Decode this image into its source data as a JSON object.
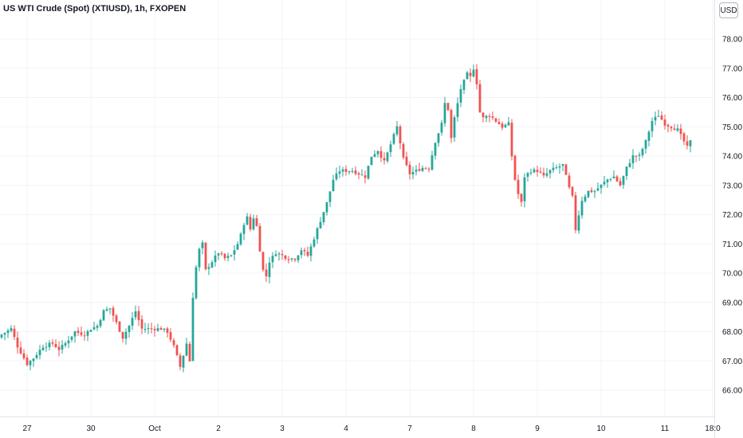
{
  "header": {
    "title": "US WTI Crude (Spot) (XTIUSD), 1h, FXOPEN",
    "currency": "USD"
  },
  "colors": {
    "up": "#26a69a",
    "down": "#ef5350",
    "grid": "#f0f3fa",
    "axis_text": "#131722"
  },
  "chart_data": {
    "type": "candlestick",
    "title": "US WTI Crude (Spot) (XTIUSD), 1h, FXOPEN",
    "xlabel": "",
    "ylabel": "",
    "ylim": [
      65.5,
      78.3
    ],
    "y_ticks": [
      "78.00",
      "77.00",
      "76.00",
      "75.00",
      "74.00",
      "73.00",
      "72.00",
      "71.00",
      "70.00",
      "69.00",
      "68.00",
      "67.00",
      "66.00"
    ],
    "x_ticks": [
      {
        "label": "27",
        "index": 8
      },
      {
        "label": "30",
        "index": 28
      },
      {
        "label": "Oct",
        "index": 48
      },
      {
        "label": "2",
        "index": 68
      },
      {
        "label": "3",
        "index": 88
      },
      {
        "label": "4",
        "index": 108
      },
      {
        "label": "7",
        "index": 128
      },
      {
        "label": "8",
        "index": 148
      },
      {
        "label": "9",
        "index": 168
      },
      {
        "label": "10",
        "index": 188
      },
      {
        "label": "11",
        "index": 208
      },
      {
        "label": "18:0",
        "index": 223
      }
    ],
    "grid": true,
    "legend": "none",
    "keyframes": [
      [
        0,
        67.9
      ],
      [
        3,
        68.1
      ],
      [
        5,
        67.5
      ],
      [
        8,
        66.9
      ],
      [
        10,
        67.1
      ],
      [
        13,
        67.5
      ],
      [
        16,
        67.6
      ],
      [
        18,
        67.4
      ],
      [
        20,
        67.6
      ],
      [
        23,
        68.0
      ],
      [
        26,
        67.9
      ],
      [
        28,
        68.1
      ],
      [
        30,
        68.2
      ],
      [
        32,
        68.7
      ],
      [
        34,
        68.8
      ],
      [
        36,
        68.3
      ],
      [
        38,
        67.8
      ],
      [
        40,
        68.2
      ],
      [
        42,
        68.7
      ],
      [
        44,
        68.1
      ],
      [
        46,
        68.1
      ],
      [
        48,
        68.1
      ],
      [
        50,
        68.1
      ],
      [
        52,
        68.0
      ],
      [
        54,
        67.5
      ],
      [
        56,
        66.8
      ],
      [
        58,
        67.6
      ],
      [
        59,
        67.0
      ],
      [
        60,
        69.2
      ],
      [
        61,
        70.2
      ],
      [
        62,
        70.8
      ],
      [
        63,
        71.0
      ],
      [
        64,
        70.1
      ],
      [
        66,
        70.4
      ],
      [
        68,
        70.7
      ],
      [
        70,
        70.5
      ],
      [
        72,
        70.6
      ],
      [
        74,
        71.0
      ],
      [
        75,
        71.3
      ],
      [
        76,
        71.7
      ],
      [
        77,
        71.9
      ],
      [
        78,
        71.5
      ],
      [
        79,
        71.9
      ],
      [
        80,
        71.6
      ],
      [
        81,
        70.8
      ],
      [
        82,
        70.1
      ],
      [
        83,
        69.9
      ],
      [
        84,
        70.4
      ],
      [
        86,
        70.7
      ],
      [
        88,
        70.6
      ],
      [
        90,
        70.5
      ],
      [
        92,
        70.5
      ],
      [
        94,
        70.8
      ],
      [
        96,
        70.6
      ],
      [
        98,
        71.2
      ],
      [
        100,
        71.8
      ],
      [
        102,
        72.4
      ],
      [
        104,
        73.2
      ],
      [
        106,
        73.5
      ],
      [
        108,
        73.5
      ],
      [
        110,
        73.5
      ],
      [
        112,
        73.4
      ],
      [
        114,
        73.3
      ],
      [
        116,
        74.0
      ],
      [
        118,
        74.2
      ],
      [
        120,
        73.8
      ],
      [
        122,
        74.4
      ],
      [
        124,
        75.0
      ],
      [
        126,
        73.9
      ],
      [
        128,
        73.4
      ],
      [
        130,
        73.5
      ],
      [
        132,
        73.6
      ],
      [
        134,
        73.6
      ],
      [
        136,
        74.5
      ],
      [
        138,
        75.1
      ],
      [
        139,
        75.8
      ],
      [
        140,
        75.6
      ],
      [
        141,
        74.6
      ],
      [
        142,
        75.3
      ],
      [
        144,
        76.3
      ],
      [
        146,
        76.8
      ],
      [
        147,
        76.7
      ],
      [
        148,
        77.0
      ],
      [
        149,
        76.5
      ],
      [
        150,
        75.5
      ],
      [
        151,
        75.3
      ],
      [
        153,
        75.4
      ],
      [
        155,
        75.2
      ],
      [
        157,
        75.0
      ],
      [
        159,
        75.1
      ],
      [
        160,
        74.0
      ],
      [
        161,
        73.2
      ],
      [
        162,
        72.7
      ],
      [
        163,
        72.4
      ],
      [
        164,
        73.3
      ],
      [
        166,
        73.5
      ],
      [
        168,
        73.5
      ],
      [
        170,
        73.3
      ],
      [
        172,
        73.5
      ],
      [
        174,
        73.6
      ],
      [
        176,
        73.7
      ],
      [
        178,
        72.9
      ],
      [
        179,
        72.6
      ],
      [
        180,
        71.5
      ],
      [
        181,
        72.0
      ],
      [
        182,
        72.5
      ],
      [
        184,
        72.8
      ],
      [
        186,
        72.8
      ],
      [
        188,
        73.0
      ],
      [
        190,
        73.2
      ],
      [
        192,
        73.3
      ],
      [
        194,
        73.0
      ],
      [
        196,
        73.6
      ],
      [
        198,
        74.0
      ],
      [
        200,
        74.0
      ],
      [
        202,
        74.5
      ],
      [
        204,
        75.2
      ],
      [
        206,
        75.4
      ],
      [
        208,
        75.1
      ],
      [
        210,
        75.0
      ],
      [
        212,
        74.9
      ],
      [
        214,
        74.5
      ],
      [
        215,
        74.3
      ],
      [
        216,
        74.5
      ]
    ]
  }
}
